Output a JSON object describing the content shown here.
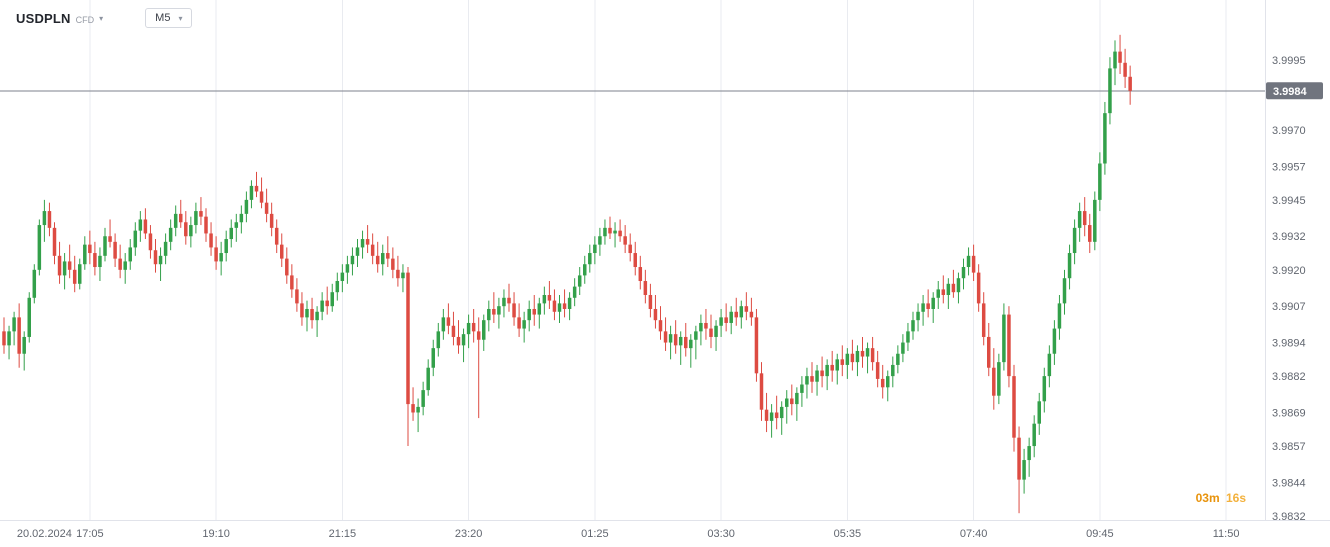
{
  "header": {
    "symbol": "USDPLN",
    "instrument_type": "CFD",
    "timeframe": "M5"
  },
  "countdown": {
    "minutes": "03m",
    "seconds": "16s"
  },
  "chart_data": {
    "type": "candlestick",
    "symbol": "USDPLN",
    "timeframe": "M5",
    "ylim": [
      3.9832,
      3.9995
    ],
    "last_price": 3.9984,
    "last_price_label": "3.9984",
    "grid": "vertical-only",
    "y_ticks": [
      3.9995,
      3.997,
      3.9957,
      3.9945,
      3.9932,
      3.992,
      3.9907,
      3.9894,
      3.9882,
      3.9869,
      3.9857,
      3.9844,
      3.9832
    ],
    "x_labels": [
      {
        "label": "20.02.2024",
        "i": 8,
        "grid": false
      },
      {
        "label": "17:05",
        "i": 17,
        "grid": true
      },
      {
        "label": "19:10",
        "i": 42,
        "grid": true
      },
      {
        "label": "21:15",
        "i": 67,
        "grid": true
      },
      {
        "label": "23:20",
        "i": 92,
        "grid": true
      },
      {
        "label": "01:25",
        "i": 117,
        "grid": true
      },
      {
        "label": "03:30",
        "i": 142,
        "grid": true
      },
      {
        "label": "05:35",
        "i": 167,
        "grid": true
      },
      {
        "label": "07:40",
        "i": 192,
        "grid": true
      },
      {
        "label": "09:45",
        "i": 217,
        "grid": true
      },
      {
        "label": "11:50",
        "i": 242,
        "grid": true
      }
    ],
    "colors": {
      "up": "#33a04a",
      "down": "#dd4b42",
      "grid": "#e9ebf0",
      "axis_line": "#e1e3ea",
      "axis_text": "#61666f",
      "price_line": "#7e828c",
      "badge_bg": "#70747e",
      "badge_text": "#ffffff",
      "countdown": "#e8930c"
    },
    "candles": [
      [
        3.9898,
        3.9903,
        3.989,
        3.9893
      ],
      [
        3.9893,
        3.99,
        3.9888,
        3.9898
      ],
      [
        3.9898,
        3.9905,
        3.9893,
        3.9903
      ],
      [
        3.9903,
        3.9908,
        3.9885,
        3.989
      ],
      [
        3.989,
        3.9898,
        3.9884,
        3.9896
      ],
      [
        3.9896,
        3.9912,
        3.9894,
        3.991
      ],
      [
        3.991,
        3.9922,
        3.9908,
        3.992
      ],
      [
        3.992,
        3.9938,
        3.9918,
        3.9936
      ],
      [
        3.9936,
        3.9945,
        3.993,
        3.9941
      ],
      [
        3.9941,
        3.9944,
        3.9932,
        3.9935
      ],
      [
        3.9935,
        3.9937,
        3.9922,
        3.9925
      ],
      [
        3.9925,
        3.993,
        3.9915,
        3.9918
      ],
      [
        3.9918,
        3.9926,
        3.9913,
        3.9923
      ],
      [
        3.9923,
        3.9929,
        3.9917,
        3.992
      ],
      [
        3.992,
        3.9925,
        3.9912,
        3.9915
      ],
      [
        3.9915,
        3.9924,
        3.9913,
        3.9922
      ],
      [
        3.9922,
        3.9932,
        3.992,
        3.9929
      ],
      [
        3.9929,
        3.9934,
        3.9922,
        3.9926
      ],
      [
        3.9926,
        3.993,
        3.9918,
        3.9921
      ],
      [
        3.9921,
        3.9928,
        3.9916,
        3.9925
      ],
      [
        3.9925,
        3.9935,
        3.9923,
        3.9932
      ],
      [
        3.9932,
        3.9938,
        3.9928,
        3.993
      ],
      [
        3.993,
        3.9933,
        3.9921,
        3.9924
      ],
      [
        3.9924,
        3.9929,
        3.9917,
        3.992
      ],
      [
        3.992,
        3.9926,
        3.9915,
        3.9923
      ],
      [
        3.9923,
        3.9931,
        3.992,
        3.9928
      ],
      [
        3.9928,
        3.9937,
        3.9925,
        3.9934
      ],
      [
        3.9934,
        3.9941,
        3.993,
        3.9938
      ],
      [
        3.9938,
        3.9942,
        3.9931,
        3.9933
      ],
      [
        3.9933,
        3.9936,
        3.9924,
        3.9927
      ],
      [
        3.9927,
        3.9931,
        3.9919,
        3.9922
      ],
      [
        3.9922,
        3.9928,
        3.9916,
        3.9925
      ],
      [
        3.9925,
        3.9933,
        3.9922,
        3.993
      ],
      [
        3.993,
        3.9938,
        3.9927,
        3.9935
      ],
      [
        3.9935,
        3.9943,
        3.9932,
        3.994
      ],
      [
        3.994,
        3.9945,
        3.9935,
        3.9937
      ],
      [
        3.9937,
        3.9941,
        3.9929,
        3.9932
      ],
      [
        3.9932,
        3.9939,
        3.9928,
        3.9936
      ],
      [
        3.9936,
        3.9944,
        3.9933,
        3.9941
      ],
      [
        3.9941,
        3.9946,
        3.9936,
        3.9939
      ],
      [
        3.9939,
        3.9942,
        3.993,
        3.9933
      ],
      [
        3.9933,
        3.9937,
        3.9925,
        3.9928
      ],
      [
        3.9928,
        3.9932,
        3.992,
        3.9923
      ],
      [
        3.9923,
        3.993,
        3.9918,
        3.9926
      ],
      [
        3.9926,
        3.9934,
        3.9923,
        3.9931
      ],
      [
        3.9931,
        3.9938,
        3.9928,
        3.9935
      ],
      [
        3.9935,
        3.994,
        3.993,
        3.9937
      ],
      [
        3.9937,
        3.9943,
        3.9933,
        3.994
      ],
      [
        3.994,
        3.9948,
        3.9937,
        3.9945
      ],
      [
        3.9945,
        3.9952,
        3.9942,
        3.995
      ],
      [
        3.995,
        3.9955,
        3.9946,
        3.9948
      ],
      [
        3.9948,
        3.9953,
        3.9942,
        3.9944
      ],
      [
        3.9944,
        3.9949,
        3.9937,
        3.994
      ],
      [
        3.994,
        3.9944,
        3.9932,
        3.9935
      ],
      [
        3.9935,
        3.9938,
        3.9926,
        3.9929
      ],
      [
        3.9929,
        3.9933,
        3.9921,
        3.9924
      ],
      [
        3.9924,
        3.9928,
        3.9915,
        3.9918
      ],
      [
        3.9918,
        3.9922,
        3.991,
        3.9913
      ],
      [
        3.9913,
        3.9917,
        3.9905,
        3.9908
      ],
      [
        3.9908,
        3.9912,
        3.99,
        3.9903
      ],
      [
        3.9903,
        3.9909,
        3.9898,
        3.9906
      ],
      [
        3.9906,
        3.991,
        3.9899,
        3.9902
      ],
      [
        3.9902,
        3.9907,
        3.9896,
        3.9905
      ],
      [
        3.9905,
        3.9912,
        3.9902,
        3.9909
      ],
      [
        3.9909,
        3.9914,
        3.9904,
        3.9907
      ],
      [
        3.9907,
        3.9915,
        3.9905,
        3.9912
      ],
      [
        3.9912,
        3.9919,
        3.9909,
        3.9916
      ],
      [
        3.9916,
        3.9922,
        3.9912,
        3.9919
      ],
      [
        3.9919,
        3.9925,
        3.9915,
        3.9922
      ],
      [
        3.9922,
        3.9928,
        3.9918,
        3.9925
      ],
      [
        3.9925,
        3.9931,
        3.9921,
        3.9928
      ],
      [
        3.9928,
        3.9934,
        3.9924,
        3.9931
      ],
      [
        3.9931,
        3.9936,
        3.9926,
        3.9929
      ],
      [
        3.9929,
        3.9933,
        3.9922,
        3.9925
      ],
      [
        3.9925,
        3.993,
        3.9919,
        3.9922
      ],
      [
        3.9922,
        3.9929,
        3.9918,
        3.9926
      ],
      [
        3.9926,
        3.9932,
        3.9921,
        3.9924
      ],
      [
        3.9924,
        3.9928,
        3.9917,
        3.992
      ],
      [
        3.992,
        3.9925,
        3.9914,
        3.9917
      ],
      [
        3.9917,
        3.9922,
        3.9912,
        3.9919
      ],
      [
        3.9919,
        3.9921,
        3.9857,
        3.9872
      ],
      [
        3.9872,
        3.9878,
        3.9866,
        3.9869
      ],
      [
        3.9869,
        3.9874,
        3.9862,
        3.9871
      ],
      [
        3.9871,
        3.988,
        3.9868,
        3.9877
      ],
      [
        3.9877,
        3.9888,
        3.9875,
        3.9885
      ],
      [
        3.9885,
        3.9895,
        3.9882,
        3.9892
      ],
      [
        3.9892,
        3.9901,
        3.9889,
        3.9898
      ],
      [
        3.9898,
        3.9906,
        3.9895,
        3.9903
      ],
      [
        3.9903,
        3.9908,
        3.9897,
        3.99
      ],
      [
        3.99,
        3.9905,
        3.9893,
        3.9896
      ],
      [
        3.9896,
        3.9902,
        3.989,
        3.9893
      ],
      [
        3.9893,
        3.9899,
        3.9887,
        3.9897
      ],
      [
        3.9897,
        3.9904,
        3.9892,
        3.9901
      ],
      [
        3.9901,
        3.9906,
        3.9894,
        3.9898
      ],
      [
        3.9898,
        3.9903,
        3.9867,
        3.9895
      ],
      [
        3.9895,
        3.9904,
        3.9891,
        3.9902
      ],
      [
        3.9902,
        3.9909,
        3.9898,
        3.9906
      ],
      [
        3.9906,
        3.9912,
        3.9901,
        3.9904
      ],
      [
        3.9904,
        3.991,
        3.9899,
        3.9907
      ],
      [
        3.9907,
        3.9913,
        3.9903,
        3.991
      ],
      [
        3.991,
        3.9915,
        3.9905,
        3.9908
      ],
      [
        3.9908,
        3.9912,
        3.99,
        3.9903
      ],
      [
        3.9903,
        3.9908,
        3.9896,
        3.9899
      ],
      [
        3.9899,
        3.9905,
        3.9894,
        3.9902
      ],
      [
        3.9902,
        3.9909,
        3.9898,
        3.9906
      ],
      [
        3.9906,
        3.9911,
        3.99,
        3.9904
      ],
      [
        3.9904,
        3.991,
        3.9899,
        3.9908
      ],
      [
        3.9908,
        3.9914,
        3.9904,
        3.9911
      ],
      [
        3.9911,
        3.9916,
        3.9906,
        3.9909
      ],
      [
        3.9909,
        3.9913,
        3.9902,
        3.9905
      ],
      [
        3.9905,
        3.9911,
        3.9901,
        3.9908
      ],
      [
        3.9908,
        3.9913,
        3.9903,
        3.9906
      ],
      [
        3.9906,
        3.9912,
        3.9902,
        3.991
      ],
      [
        3.991,
        3.9917,
        3.9907,
        3.9914
      ],
      [
        3.9914,
        3.9921,
        3.9911,
        3.9918
      ],
      [
        3.9918,
        3.9925,
        3.9915,
        3.9922
      ],
      [
        3.9922,
        3.9929,
        3.9919,
        3.9926
      ],
      [
        3.9926,
        3.9932,
        3.9922,
        3.9929
      ],
      [
        3.9929,
        3.9935,
        3.9925,
        3.9932
      ],
      [
        3.9932,
        3.9938,
        3.9929,
        3.9935
      ],
      [
        3.9935,
        3.9939,
        3.9931,
        3.9933
      ],
      [
        3.9933,
        3.9937,
        3.9928,
        3.9934
      ],
      [
        3.9934,
        3.9938,
        3.993,
        3.9932
      ],
      [
        3.9932,
        3.9936,
        3.9926,
        3.9929
      ],
      [
        3.9929,
        3.9933,
        3.9923,
        3.9926
      ],
      [
        3.9926,
        3.993,
        3.9918,
        3.9921
      ],
      [
        3.9921,
        3.9925,
        3.9913,
        3.9916
      ],
      [
        3.9916,
        3.992,
        3.9908,
        3.9911
      ],
      [
        3.9911,
        3.9915,
        3.9903,
        3.9906
      ],
      [
        3.9906,
        3.9911,
        3.9899,
        3.9902
      ],
      [
        3.9902,
        3.9907,
        3.9895,
        3.9898
      ],
      [
        3.9898,
        3.9903,
        3.9891,
        3.9894
      ],
      [
        3.9894,
        3.99,
        3.9888,
        3.9897
      ],
      [
        3.9897,
        3.9902,
        3.989,
        3.9893
      ],
      [
        3.9893,
        3.9898,
        3.9886,
        3.9896
      ],
      [
        3.9896,
        3.9901,
        3.9889,
        3.9892
      ],
      [
        3.9892,
        3.9897,
        3.9885,
        3.9895
      ],
      [
        3.9895,
        3.99,
        3.9888,
        3.9898
      ],
      [
        3.9898,
        3.9904,
        3.9893,
        3.9901
      ],
      [
        3.9901,
        3.9906,
        3.9895,
        3.9899
      ],
      [
        3.9899,
        3.9904,
        3.9892,
        3.9896
      ],
      [
        3.9896,
        3.9902,
        3.9891,
        3.99
      ],
      [
        3.99,
        3.9906,
        3.9896,
        3.9903
      ],
      [
        3.9903,
        3.9908,
        3.9898,
        3.9901
      ],
      [
        3.9901,
        3.9907,
        3.9897,
        3.9905
      ],
      [
        3.9905,
        3.991,
        3.99,
        3.9903
      ],
      [
        3.9903,
        3.9909,
        3.9899,
        3.9907
      ],
      [
        3.9907,
        3.9912,
        3.9902,
        3.9905
      ],
      [
        3.9905,
        3.991,
        3.99,
        3.9903
      ],
      [
        3.9903,
        3.9906,
        3.988,
        3.9883
      ],
      [
        3.9883,
        3.9887,
        3.9866,
        3.987
      ],
      [
        3.987,
        3.9876,
        3.9862,
        3.9866
      ],
      [
        3.9866,
        3.9872,
        3.986,
        3.9869
      ],
      [
        3.9869,
        3.9875,
        3.9863,
        3.9867
      ],
      [
        3.9867,
        3.9873,
        3.9861,
        3.9871
      ],
      [
        3.9871,
        3.9877,
        3.9865,
        3.9874
      ],
      [
        3.9874,
        3.9879,
        3.9868,
        3.9872
      ],
      [
        3.9872,
        3.9878,
        3.9866,
        3.9876
      ],
      [
        3.9876,
        3.9882,
        3.9871,
        3.9879
      ],
      [
        3.9879,
        3.9885,
        3.9874,
        3.9882
      ],
      [
        3.9882,
        3.9887,
        3.9876,
        3.988
      ],
      [
        3.988,
        3.9886,
        3.9875,
        3.9884
      ],
      [
        3.9884,
        3.9889,
        3.9878,
        3.9882
      ],
      [
        3.9882,
        3.9888,
        3.9877,
        3.9886
      ],
      [
        3.9886,
        3.9891,
        3.988,
        3.9884
      ],
      [
        3.9884,
        3.989,
        3.9879,
        3.9888
      ],
      [
        3.9888,
        3.9893,
        3.9882,
        3.9886
      ],
      [
        3.9886,
        3.9892,
        3.9881,
        3.989
      ],
      [
        3.989,
        3.9895,
        3.9884,
        3.9887
      ],
      [
        3.9887,
        3.9893,
        3.9882,
        3.9891
      ],
      [
        3.9891,
        3.9896,
        3.9885,
        3.9889
      ],
      [
        3.9889,
        3.9894,
        3.9883,
        3.9892
      ],
      [
        3.9892,
        3.9896,
        3.9884,
        3.9887
      ],
      [
        3.9887,
        3.9891,
        3.9878,
        3.9881
      ],
      [
        3.9881,
        3.9886,
        3.9874,
        3.9878
      ],
      [
        3.9878,
        3.9884,
        3.9873,
        3.9882
      ],
      [
        3.9882,
        3.9889,
        3.9878,
        3.9886
      ],
      [
        3.9886,
        3.9893,
        3.9883,
        3.989
      ],
      [
        3.989,
        3.9897,
        3.9887,
        3.9894
      ],
      [
        3.9894,
        3.9901,
        3.9891,
        3.9898
      ],
      [
        3.9898,
        3.9905,
        3.9895,
        3.9902
      ],
      [
        3.9902,
        3.9908,
        3.9898,
        3.9905
      ],
      [
        3.9905,
        3.9911,
        3.99,
        3.9908
      ],
      [
        3.9908,
        3.9913,
        3.9903,
        3.9906
      ],
      [
        3.9906,
        3.9912,
        3.9901,
        3.991
      ],
      [
        3.991,
        3.9916,
        3.9906,
        3.9913
      ],
      [
        3.9913,
        3.9918,
        3.9908,
        3.9911
      ],
      [
        3.9911,
        3.9917,
        3.9906,
        3.9915
      ],
      [
        3.9915,
        3.992,
        3.991,
        3.9912
      ],
      [
        3.9912,
        3.9919,
        3.9908,
        3.9917
      ],
      [
        3.9917,
        3.9924,
        3.9913,
        3.9921
      ],
      [
        3.9921,
        3.9928,
        3.9918,
        3.9925
      ],
      [
        3.9925,
        3.9929,
        3.9916,
        3.9919
      ],
      [
        3.9919,
        3.9922,
        3.9905,
        3.9908
      ],
      [
        3.9908,
        3.9912,
        3.9893,
        3.9896
      ],
      [
        3.9896,
        3.9901,
        3.9882,
        3.9885
      ],
      [
        3.9885,
        3.9892,
        3.987,
        3.9875
      ],
      [
        3.9875,
        3.989,
        3.9872,
        3.9887
      ],
      [
        3.9887,
        3.9908,
        3.9884,
        3.9904
      ],
      [
        3.9904,
        3.9907,
        3.9878,
        3.9882
      ],
      [
        3.9882,
        3.9886,
        3.9855,
        3.986
      ],
      [
        3.986,
        3.9864,
        3.9833,
        3.9845
      ],
      [
        3.9845,
        3.9856,
        3.984,
        3.9852
      ],
      [
        3.9852,
        3.986,
        3.9846,
        3.9857
      ],
      [
        3.9857,
        3.9868,
        3.9853,
        3.9865
      ],
      [
        3.9865,
        3.9876,
        3.9861,
        3.9873
      ],
      [
        3.9873,
        3.9885,
        3.9869,
        3.9882
      ],
      [
        3.9882,
        3.9893,
        3.9878,
        3.989
      ],
      [
        3.989,
        3.9902,
        3.9886,
        3.9899
      ],
      [
        3.9899,
        3.9911,
        3.9895,
        3.9908
      ],
      [
        3.9908,
        3.992,
        3.9904,
        3.9917
      ],
      [
        3.9917,
        3.9929,
        3.9913,
        3.9926
      ],
      [
        3.9926,
        3.9938,
        3.9922,
        3.9935
      ],
      [
        3.9935,
        3.9944,
        3.993,
        3.9941
      ],
      [
        3.9941,
        3.9946,
        3.9932,
        3.9936
      ],
      [
        3.9936,
        3.994,
        3.9926,
        3.993
      ],
      [
        3.993,
        3.9948,
        3.9927,
        3.9945
      ],
      [
        3.9945,
        3.9962,
        3.9941,
        3.9958
      ],
      [
        3.9958,
        3.998,
        3.9954,
        3.9976
      ],
      [
        3.9976,
        3.9996,
        3.9972,
        3.9992
      ],
      [
        3.9992,
        4.0002,
        3.9986,
        3.9998
      ],
      [
        3.9998,
        4.0004,
        3.999,
        3.9994
      ],
      [
        3.9994,
        3.9999,
        3.9985,
        3.9989
      ],
      [
        3.9989,
        3.9993,
        3.9979,
        3.9984
      ]
    ]
  }
}
